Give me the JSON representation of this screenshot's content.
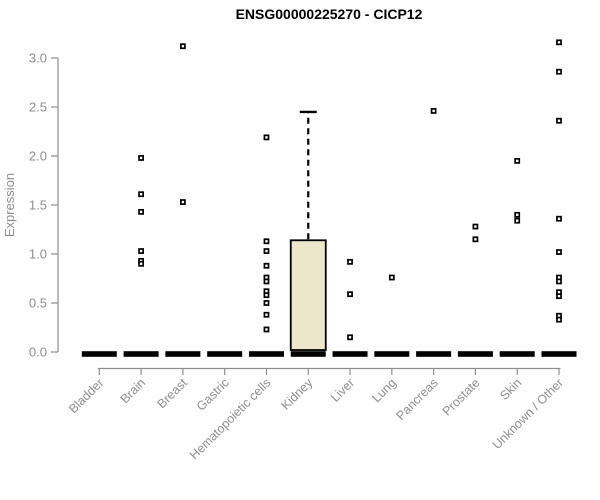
{
  "chart_data": {
    "type": "boxplot",
    "title": "ENSG00000225270 - CICP12",
    "xlabel": "",
    "ylabel": "Expression",
    "ylim": [
      0,
      3.2
    ],
    "yticks": [
      0.0,
      0.5,
      1.0,
      1.5,
      2.0,
      2.5,
      3.0
    ],
    "grid": "off",
    "xticklabel_rotation_deg": 45,
    "categories": [
      "Bladder",
      "Brain",
      "Breast",
      "Gastric",
      "Hematopoietic cells",
      "Kidney",
      "Liver",
      "Lung",
      "Pancreas",
      "Prostate",
      "Skin",
      "Unknown / Other"
    ],
    "series": [
      {
        "category": "Bladder",
        "q1": 0,
        "median": 0,
        "q3": 0,
        "whisker_low": 0,
        "whisker_high": 0,
        "outliers": []
      },
      {
        "category": "Brain",
        "q1": 0,
        "median": 0,
        "q3": 0,
        "whisker_low": 0,
        "whisker_high": 0,
        "outliers": [
          1.98,
          1.61,
          1.43,
          1.03,
          0.93,
          0.9
        ]
      },
      {
        "category": "Breast",
        "q1": 0,
        "median": 0,
        "q3": 0,
        "whisker_low": 0,
        "whisker_high": 0,
        "outliers": [
          3.12,
          1.53
        ]
      },
      {
        "category": "Gastric",
        "q1": 0,
        "median": 0,
        "q3": 0,
        "whisker_low": 0,
        "whisker_high": 0,
        "outliers": []
      },
      {
        "category": "Hematopoietic cells",
        "q1": 0,
        "median": 0,
        "q3": 0,
        "whisker_low": 0,
        "whisker_high": 0,
        "outliers": [
          2.19,
          1.13,
          1.03,
          0.88,
          0.76,
          0.72,
          0.62,
          0.58,
          0.5,
          0.38,
          0.23
        ]
      },
      {
        "category": "Kidney",
        "q1": 0,
        "median": 0,
        "q3": 1.14,
        "whisker_low": 0,
        "whisker_high": 2.45,
        "outliers": []
      },
      {
        "category": "Liver",
        "q1": 0,
        "median": 0,
        "q3": 0,
        "whisker_low": 0,
        "whisker_high": 0,
        "outliers": [
          0.92,
          0.59,
          0.15
        ]
      },
      {
        "category": "Lung",
        "q1": 0,
        "median": 0,
        "q3": 0,
        "whisker_low": 0,
        "whisker_high": 0,
        "outliers": [
          0.76
        ]
      },
      {
        "category": "Pancreas",
        "q1": 0,
        "median": 0,
        "q3": 0,
        "whisker_low": 0,
        "whisker_high": 0,
        "outliers": [
          2.46
        ]
      },
      {
        "category": "Prostate",
        "q1": 0,
        "median": 0,
        "q3": 0,
        "whisker_low": 0,
        "whisker_high": 0,
        "outliers": [
          1.28,
          1.15
        ]
      },
      {
        "category": "Skin",
        "q1": 0,
        "median": 0,
        "q3": 0,
        "whisker_low": 0,
        "whisker_high": 0,
        "outliers": [
          1.95,
          1.4,
          1.34
        ]
      },
      {
        "category": "Unknown / Other",
        "q1": 0,
        "median": 0,
        "q3": 0,
        "whisker_low": 0,
        "whisker_high": 0,
        "outliers": [
          3.16,
          2.86,
          2.36,
          1.36,
          1.02,
          0.76,
          0.72,
          0.61,
          0.57,
          0.37,
          0.33
        ]
      }
    ],
    "colors": {
      "box_fill": "#ece7cb",
      "box_border": "#000000",
      "median_bar": "#000000",
      "whisker": "#000000",
      "outlier": "#000000",
      "outlier_center": "#ffffff",
      "axis": "#8e8e8e",
      "tick_label": "#8e8e8e",
      "title": "#000000",
      "background": "#ffffff"
    }
  }
}
